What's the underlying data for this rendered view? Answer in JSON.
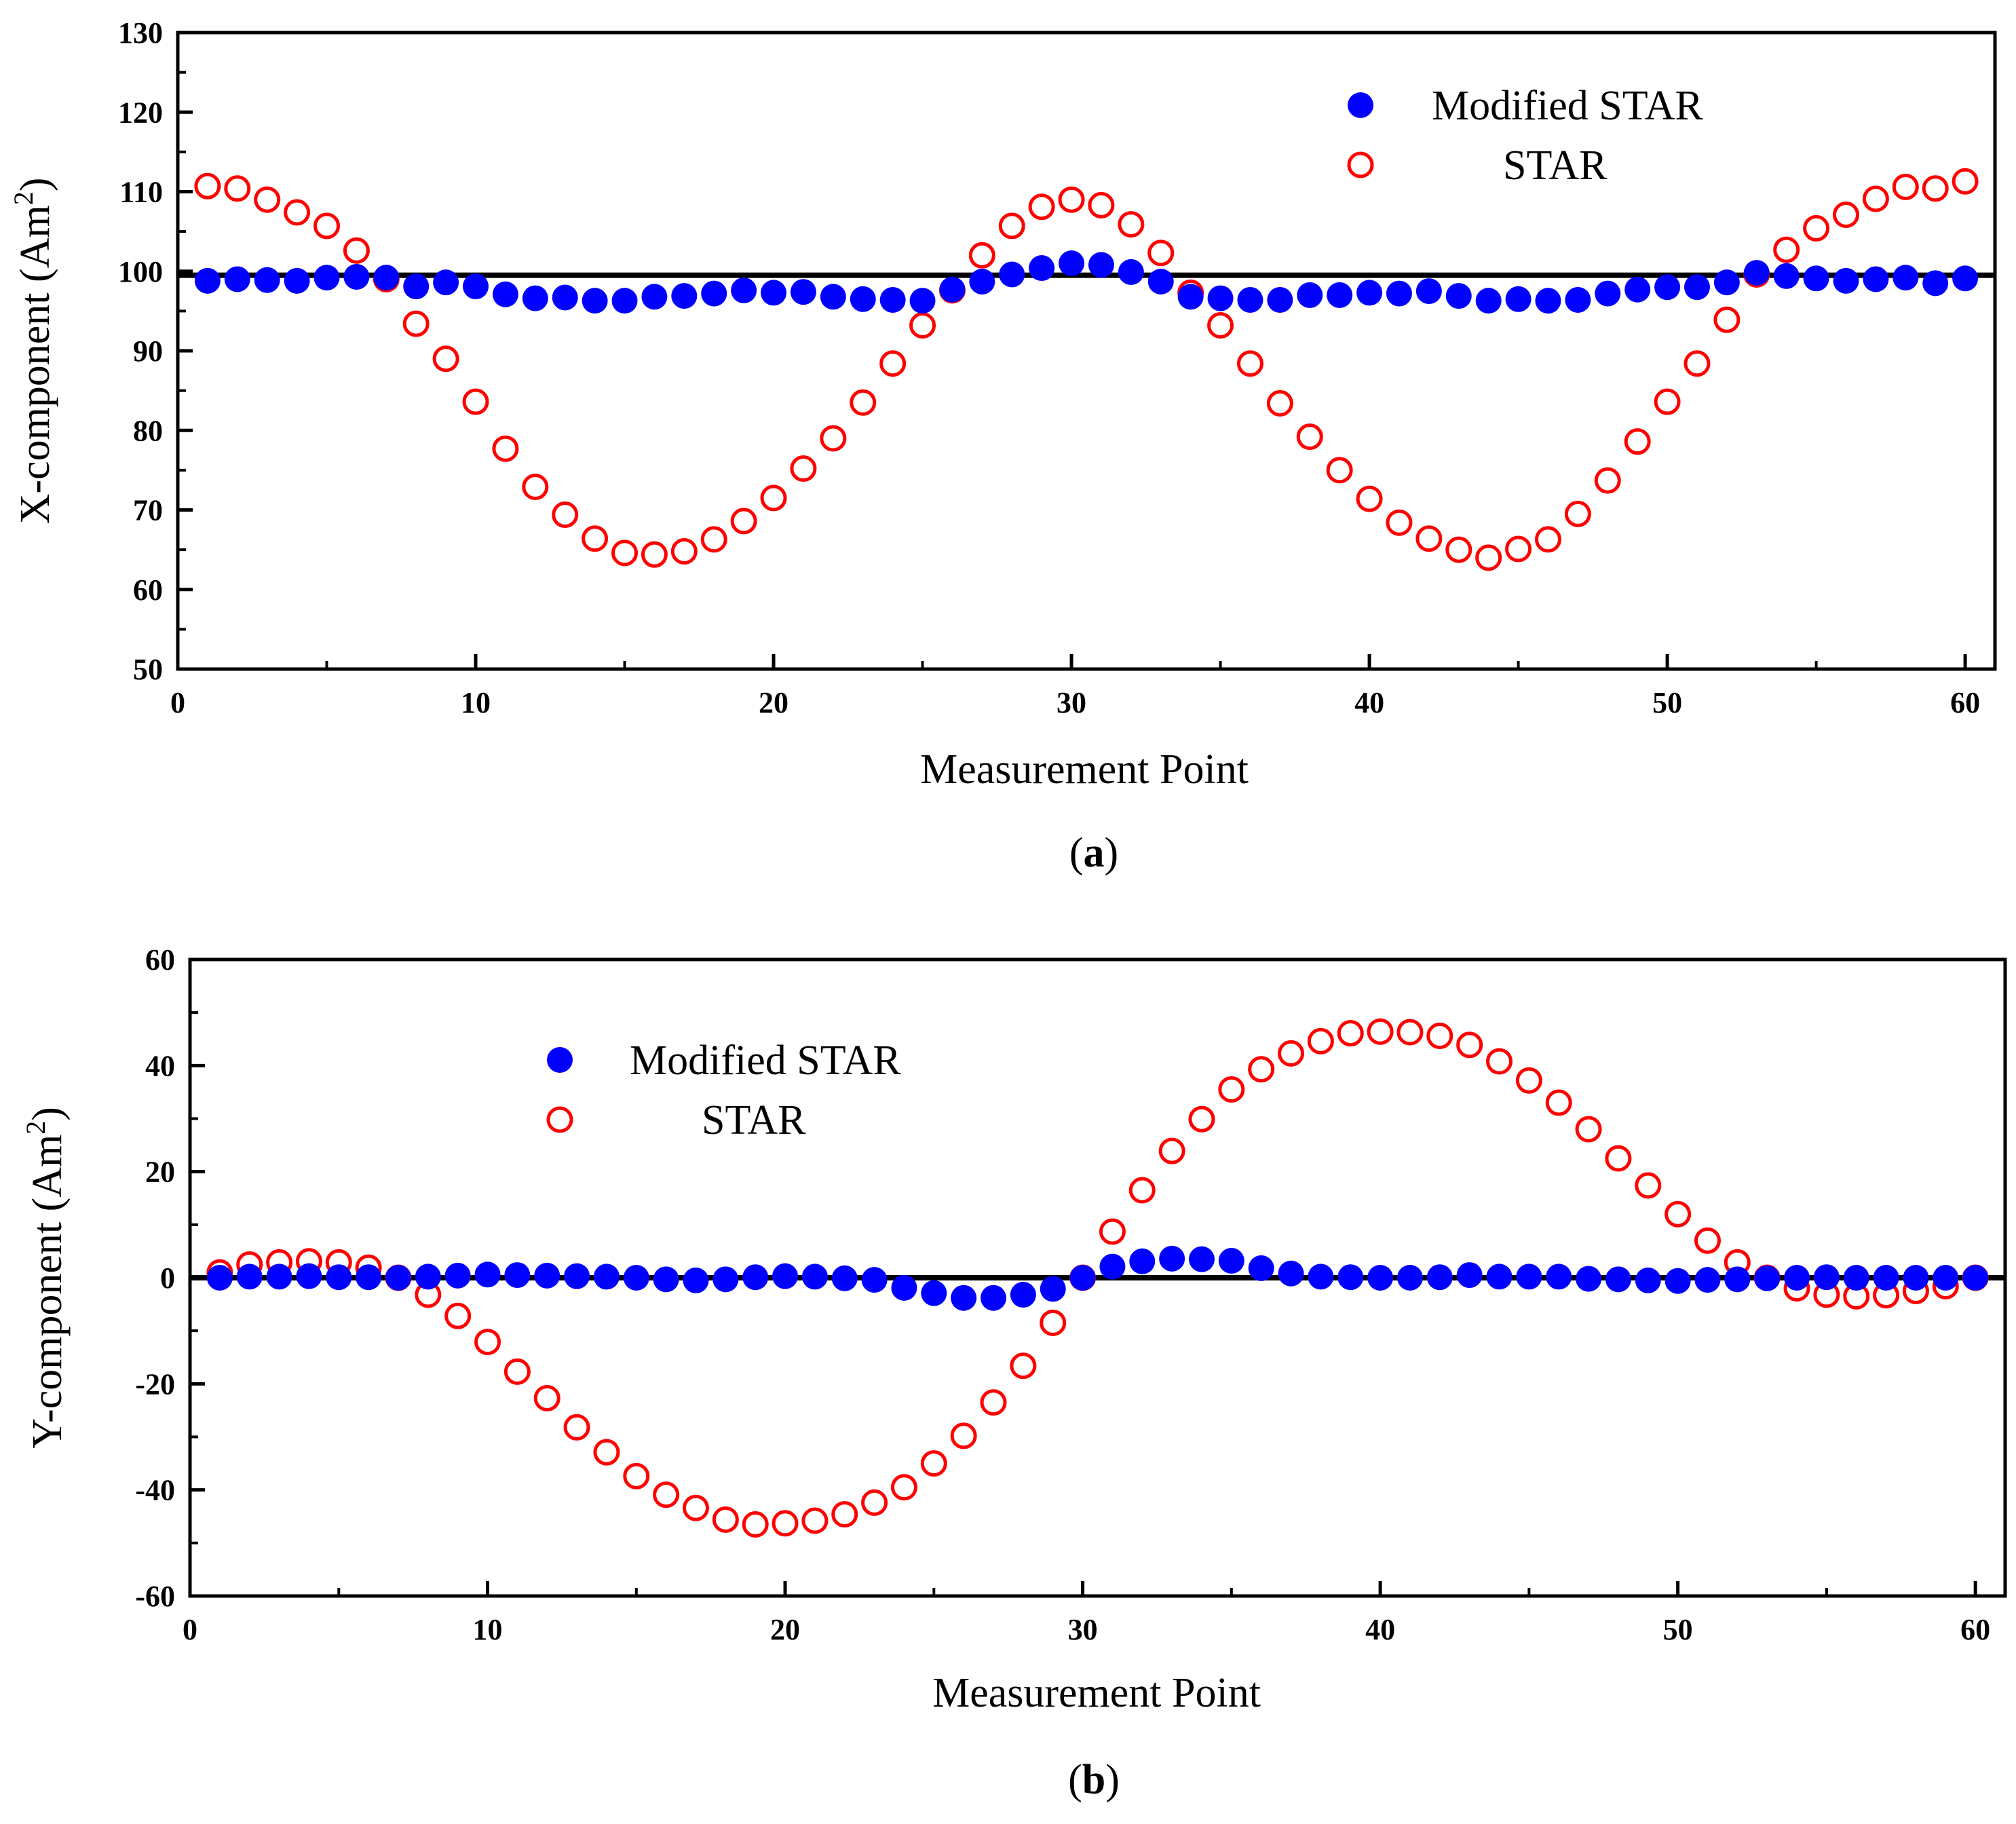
{
  "chart_data": [
    {
      "id": "a",
      "type": "scatter",
      "caption_open": "(",
      "caption_letter": "a",
      "caption_close": ")",
      "xlabel": "Measurement Point",
      "ylabel": "X-component (Am",
      "ylabel_sup": "2",
      "ylabel_close": ")",
      "xlim": [
        0,
        61
      ],
      "ylim": [
        50,
        130
      ],
      "xticks": [
        0,
        10,
        20,
        30,
        40,
        50,
        60
      ],
      "yticks": [
        50,
        60,
        70,
        80,
        90,
        100,
        110,
        120,
        130
      ],
      "reference_line": 99.5,
      "legend_position": "top-right",
      "x": [
        1,
        2,
        3,
        4,
        5,
        6,
        7,
        8,
        9,
        10,
        11,
        12,
        13,
        14,
        15,
        16,
        17,
        18,
        19,
        20,
        21,
        22,
        23,
        24,
        25,
        26,
        27,
        28,
        29,
        30,
        31,
        32,
        33,
        34,
        35,
        36,
        37,
        38,
        39,
        40,
        41,
        42,
        43,
        44,
        45,
        46,
        47,
        48,
        49,
        50,
        51,
        52,
        53,
        54,
        55,
        56,
        57,
        58,
        59,
        60
      ],
      "series": [
        {
          "name": "Modified STAR",
          "marker": "filled-circle",
          "color": "#0000ff",
          "values": [
            98.8,
            99.0,
            98.9,
            98.8,
            99.2,
            99.3,
            99.2,
            98.1,
            98.6,
            98.1,
            97.1,
            96.6,
            96.7,
            96.3,
            96.3,
            96.8,
            96.9,
            97.2,
            97.6,
            97.3,
            97.4,
            96.8,
            96.5,
            96.4,
            96.3,
            97.7,
            98.7,
            99.6,
            100.4,
            101.0,
            100.8,
            99.9,
            98.7,
            96.8,
            96.6,
            96.4,
            96.4,
            97.0,
            97.0,
            97.3,
            97.2,
            97.5,
            96.9,
            96.3,
            96.5,
            96.3,
            96.4,
            97.2,
            97.7,
            98.0,
            98.0,
            98.6,
            99.8,
            99.4,
            99.1,
            98.8,
            99.0,
            99.2,
            98.5,
            99.1
          ]
        },
        {
          "name": "STAR",
          "marker": "open-circle",
          "color": "#ff0000",
          "values": [
            110.7,
            110.4,
            109.0,
            107.4,
            105.7,
            102.6,
            99.0,
            93.4,
            89.0,
            83.6,
            77.7,
            72.9,
            69.4,
            66.4,
            64.6,
            64.4,
            64.8,
            66.3,
            68.6,
            71.5,
            75.2,
            79.0,
            83.5,
            88.4,
            93.2,
            97.6,
            102.0,
            105.7,
            108.1,
            109.0,
            108.3,
            105.9,
            102.3,
            97.3,
            93.2,
            88.4,
            83.4,
            79.2,
            75.0,
            71.4,
            68.4,
            66.4,
            65.0,
            64.0,
            65.1,
            66.3,
            69.5,
            73.7,
            78.6,
            83.6,
            88.4,
            93.9,
            99.6,
            102.7,
            105.4,
            107.1,
            109.1,
            110.6,
            110.4,
            111.3
          ]
        }
      ]
    },
    {
      "id": "b",
      "type": "scatter",
      "caption_open": "(",
      "caption_letter": "b",
      "caption_close": ")",
      "xlabel": "Measurement Point",
      "ylabel": "Y-component (Am",
      "ylabel_sup": "2",
      "ylabel_close": ")",
      "xlim": [
        0,
        61
      ],
      "ylim": [
        -60,
        60
      ],
      "xticks": [
        0,
        10,
        20,
        30,
        40,
        50,
        60
      ],
      "yticks": [
        -60,
        -40,
        -20,
        0,
        20,
        40,
        60
      ],
      "reference_line": 0,
      "legend_position": "top-left",
      "x": [
        1,
        2,
        3,
        4,
        5,
        6,
        7,
        8,
        9,
        10,
        11,
        12,
        13,
        14,
        15,
        16,
        17,
        18,
        19,
        20,
        21,
        22,
        23,
        24,
        25,
        26,
        27,
        28,
        29,
        30,
        31,
        32,
        33,
        34,
        35,
        36,
        37,
        38,
        39,
        40,
        41,
        42,
        43,
        44,
        45,
        46,
        47,
        48,
        49,
        50,
        51,
        52,
        53,
        54,
        55,
        56,
        57,
        58,
        59,
        60
      ],
      "series": [
        {
          "name": "Modified STAR",
          "marker": "filled-circle",
          "color": "#0000ff",
          "values": [
            0.0,
            0.2,
            0.2,
            0.3,
            0.1,
            0.1,
            0.0,
            0.2,
            0.4,
            0.6,
            0.5,
            0.4,
            0.3,
            0.2,
            0.0,
            -0.3,
            -0.5,
            -0.3,
            0.1,
            0.3,
            0.2,
            -0.1,
            -0.4,
            -1.9,
            -2.9,
            -3.8,
            -3.8,
            -3.2,
            -2.1,
            0.0,
            2.1,
            3.1,
            3.6,
            3.5,
            3.2,
            1.8,
            0.8,
            0.2,
            0.1,
            0.0,
            0.0,
            0.1,
            0.5,
            0.2,
            0.2,
            0.2,
            -0.2,
            -0.3,
            -0.5,
            -0.6,
            -0.4,
            -0.3,
            -0.1,
            0.0,
            0.1,
            0.0,
            0.0,
            0.0,
            0.0,
            0.0
          ]
        },
        {
          "name": "STAR",
          "marker": "open-circle",
          "color": "#ff0000",
          "values": [
            1.0,
            2.5,
            2.9,
            3.1,
            2.9,
            1.9,
            0.0,
            -3.2,
            -7.2,
            -12.1,
            -17.7,
            -22.7,
            -28.2,
            -32.9,
            -37.4,
            -40.9,
            -43.4,
            -45.6,
            -46.5,
            -46.3,
            -45.8,
            -44.6,
            -42.4,
            -39.5,
            -35.0,
            -29.8,
            -23.5,
            -16.6,
            -8.5,
            0.0,
            8.7,
            16.5,
            23.9,
            29.9,
            35.5,
            39.3,
            42.3,
            44.6,
            46.1,
            46.4,
            46.3,
            45.6,
            43.9,
            40.8,
            37.2,
            33.0,
            28.0,
            22.5,
            17.4,
            12.0,
            7.0,
            2.9,
            0.0,
            -2.0,
            -3.2,
            -3.5,
            -3.3,
            -2.5,
            -1.6,
            0.0
          ]
        }
      ]
    }
  ]
}
